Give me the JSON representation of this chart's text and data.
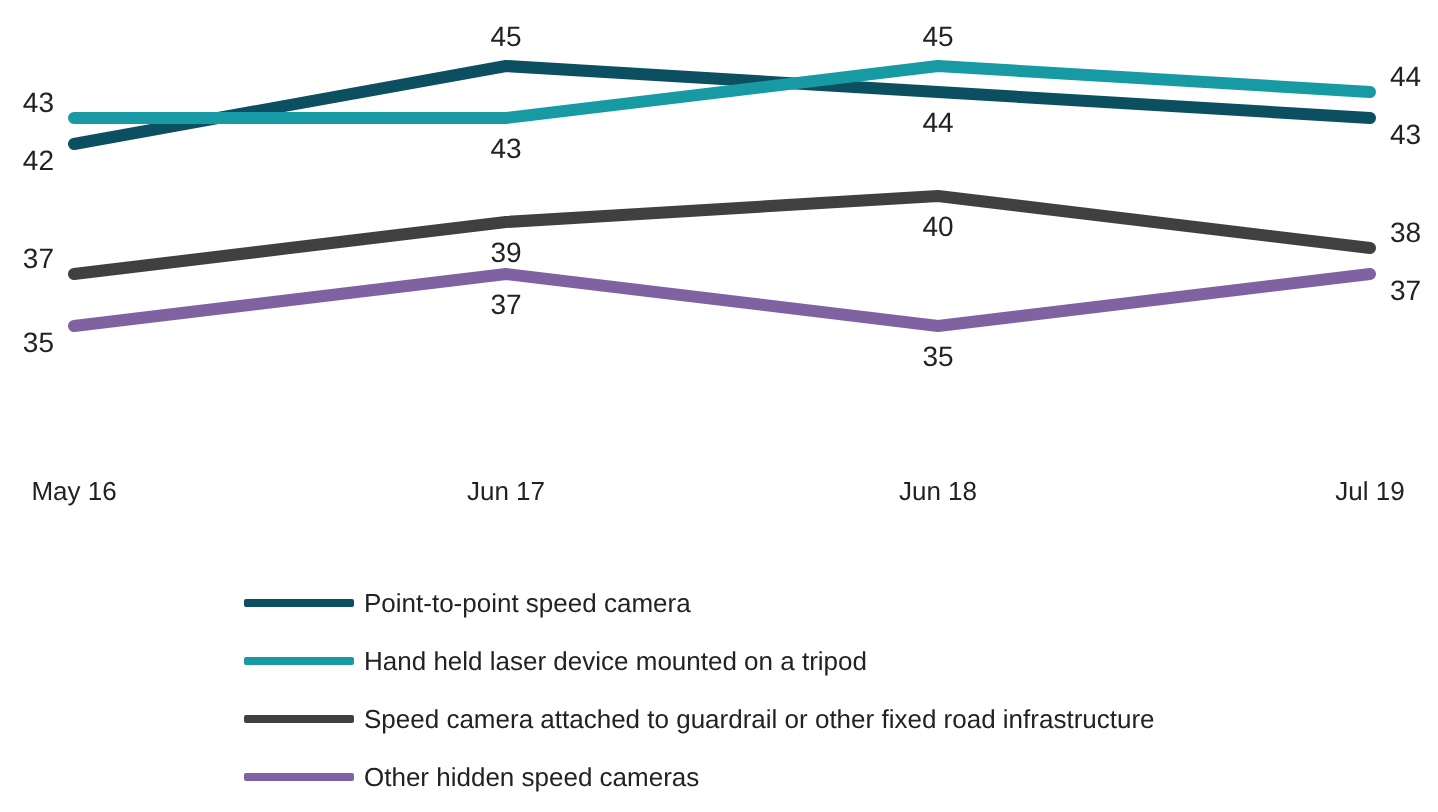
{
  "chart_data": {
    "type": "line",
    "categories": [
      "May 16",
      "Jun 17",
      "Jun 18",
      "Jul 19"
    ],
    "series": [
      {
        "name": "Point-to-point speed camera",
        "color": "#0b4f60",
        "values": [
          42,
          45,
          44,
          43
        ]
      },
      {
        "name": "Hand held laser device mounted on a tripod",
        "color": "#179aa3",
        "values": [
          43,
          43,
          45,
          44
        ]
      },
      {
        "name": "Speed camera attached to guardrail or other fixed road infrastructure",
        "color": "#404040",
        "values": [
          37,
          39,
          40,
          38
        ]
      },
      {
        "name": "Other hidden speed cameras",
        "color": "#8062a3",
        "values": [
          35,
          37,
          35,
          37
        ]
      }
    ],
    "data_labels": true,
    "legend": "bottom"
  }
}
